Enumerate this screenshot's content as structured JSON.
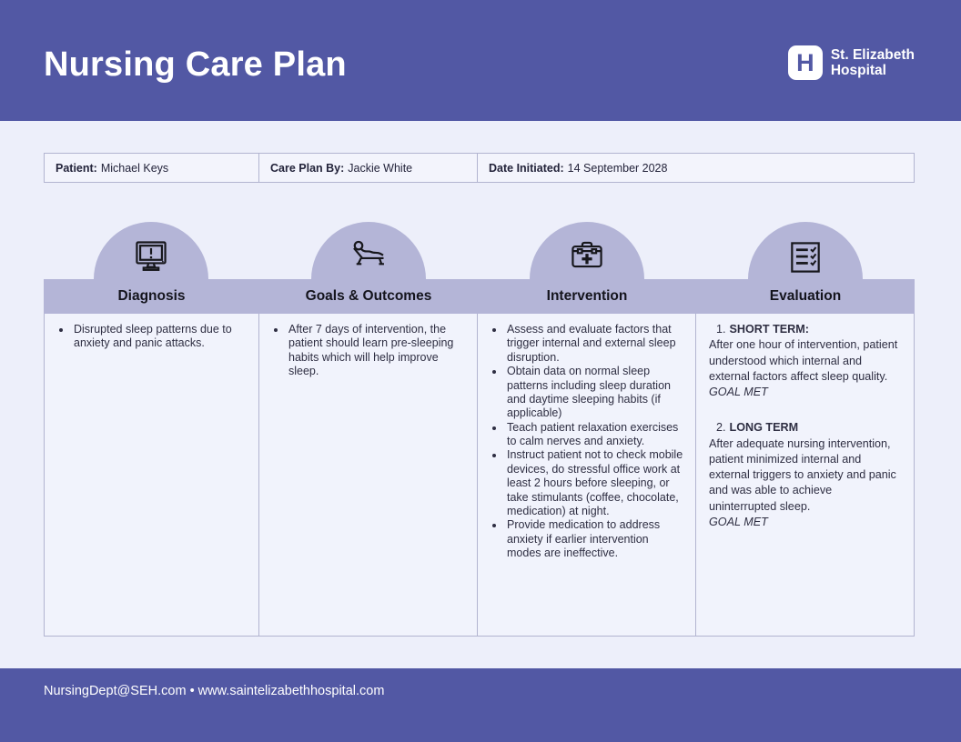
{
  "header": {
    "title": "Nursing Care Plan",
    "logo": {
      "letter": "H",
      "name_line1": "St. Elizabeth",
      "name_line2": "Hospital"
    }
  },
  "patient_bar": {
    "fields": [
      {
        "label": "Patient:",
        "value": "Michael Keys"
      },
      {
        "label": "Care Plan By:",
        "value": "Jackie White"
      },
      {
        "label": "Date Initiated:",
        "value": "14 September 2028"
      }
    ]
  },
  "columns": [
    {
      "title": "Diagnosis",
      "icon": "monitor-alert-icon",
      "bullets": [
        "Disrupted sleep patterns due to anxiety and panic attacks."
      ]
    },
    {
      "title": "Goals & Outcomes",
      "icon": "patient-recliner-icon",
      "bullets": [
        "After 7 days of intervention, the patient should learn pre-sleeping habits which will help improve sleep."
      ]
    },
    {
      "title": "Intervention",
      "icon": "medical-bag-icon",
      "bullets": [
        "Assess and evaluate factors that trigger internal and external sleep disruption.",
        "Obtain data on normal sleep patterns including sleep duration and daytime sleeping habits (if applicable)",
        "Teach patient relaxation exercises to calm nerves and anxiety.",
        "Instruct patient not to check mobile devices, do stressful office work at least 2 hours before sleeping, or take stimulants (coffee, chocolate, medication) at night.",
        "Provide medication to address anxiety if earlier intervention modes are ineffective."
      ]
    },
    {
      "title": "Evaluation",
      "icon": "checklist-icon",
      "sections": [
        {
          "number": "1.",
          "heading": "SHORT TERM:",
          "body": "After one hour of intervention, patient understood which internal and external factors affect sleep quality.",
          "status": "GOAL MET"
        },
        {
          "number": "2.",
          "heading": "LONG TERM",
          "body": "After adequate nursing intervention, patient minimized internal and external triggers to anxiety and panic and was able to achieve uninterrupted sleep.",
          "status": "GOAL MET"
        }
      ]
    }
  ],
  "footer": {
    "contact": "NursingDept@SEH.com • www.saintelizabethhospital.com"
  },
  "colors": {
    "header_bg": "#5258a4",
    "band_bg": "#b4b5d7",
    "page_bg": "#edeffa",
    "cell_bg": "#f1f3fc",
    "border": "#b2b4d0",
    "text": "#2e2e42"
  }
}
